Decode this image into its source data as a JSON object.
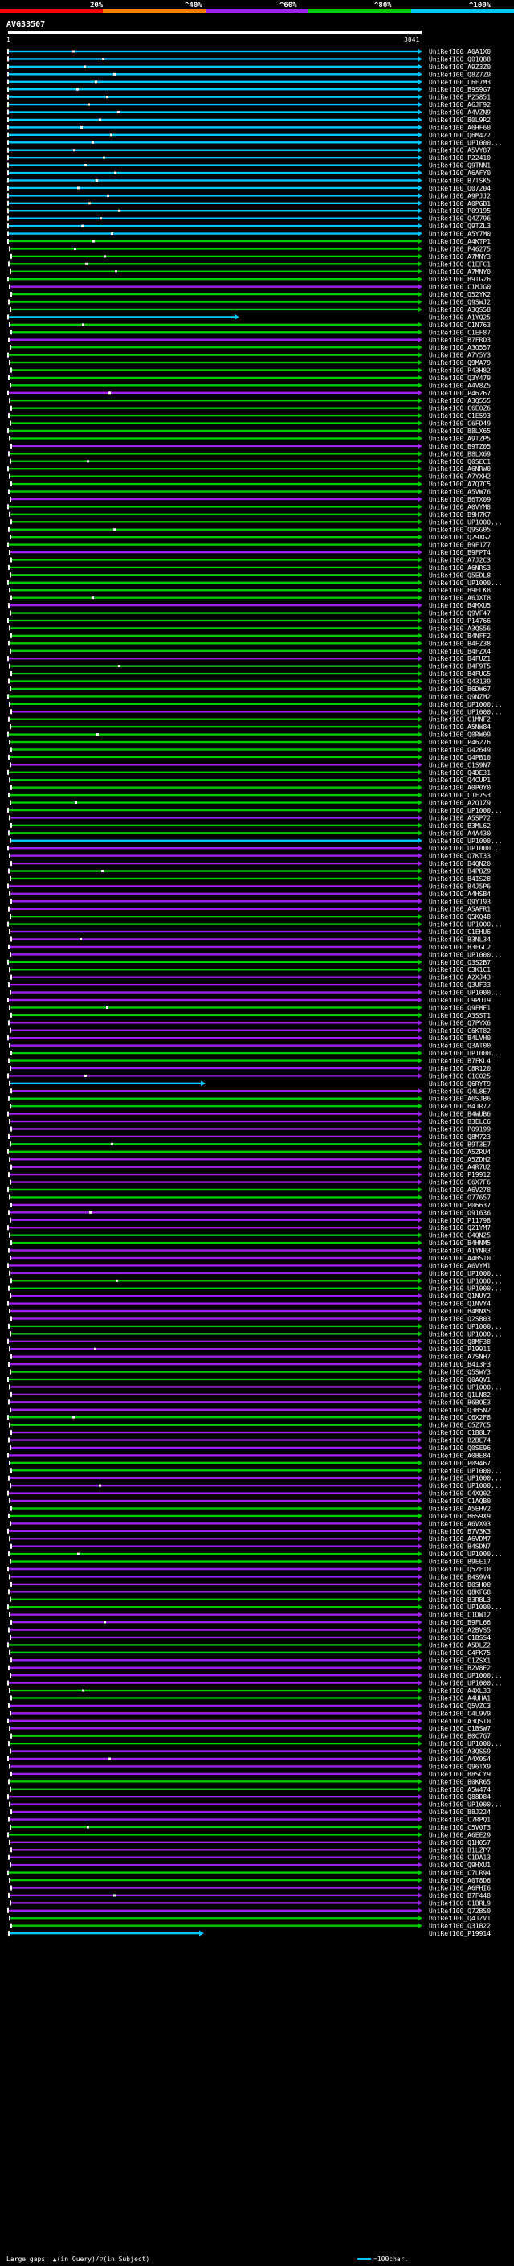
{
  "query_name": "AVG33507",
  "query_start": "1",
  "query_end": "3041",
  "legend": {
    "scale_labels": [
      "20%",
      "^40%",
      "^60%",
      "^80%",
      "^100%"
    ],
    "colors": [
      "#ff0000",
      "#ff7f00",
      "#a020f0",
      "#00cc00",
      "#00c8ff"
    ]
  },
  "footer": {
    "gaps_text": "Large gaps: ▲(in Query)/▽(in Subject)",
    "scale_text": "=100char."
  },
  "chart_data": {
    "type": "alignment",
    "title": "AVG33507",
    "x_range": [
      1,
      3041
    ],
    "color_by_identity": {
      "20": "#ff0000",
      "40": "#ff7f00",
      "60": "#a020f0",
      "80": "#00cc00",
      "100": "#00c8ff"
    },
    "hits": [
      "UniRef100_A0A1X0",
      "UniRef100_Q01Q88",
      "UniRef100_A9Z3Z0",
      "UniRef100_Q8Z7Z9",
      "UniRef100_C6F7M3",
      "UniRef100_B9S9G7",
      "UniRef100_P25851",
      "UniRef100_A6JF92",
      "UniRef100_A4VZN9",
      "UniRef100_B0L9R2",
      "UniRef100_A6HF60",
      "UniRef100_Q6M422",
      "UniRef100_UP1000...",
      "UniRef100_A5VY87",
      "UniRef100_P22410",
      "UniRef100_Q9TNN1",
      "UniRef100_A6AFY0",
      "UniRef100_B7TSK5",
      "UniRef100_Q07204",
      "UniRef100_A9PJJ2",
      "UniRef100_A0PGB1",
      "UniRef100_P09195",
      "UniRef100_Q4Z796",
      "UniRef100_Q9TZL3",
      "UniRef100_A5Y7M0",
      "UniRef100_A4KTP1",
      "UniRef100_P46275",
      "UniRef100_A7MNY3",
      "UniRef100_C1EFC1",
      "UniRef100_A7MNY0",
      "UniRef100_B9IG26",
      "UniRef100_C1MJG0",
      "UniRef100_Q52YK2",
      "UniRef100_Q9SWJ2",
      "UniRef100_A3QS58",
      "UniRef100_A1YQ25",
      "UniRef100_C1N763",
      "UniRef100_C1EF87",
      "UniRef100_B7FRD3",
      "UniRef100_A3Q557",
      "UniRef100_A7Y5Y3",
      "UniRef100_Q9MA79",
      "UniRef100_P43H82",
      "UniRef100_Q3Y479",
      "UniRef100_A4V8Z5",
      "UniRef100_P46267",
      "UniRef100_A3Q555",
      "UniRef100_C6E0Z6",
      "UniRef100_C1E593",
      "UniRef100_C6FD49",
      "UniRef100_B8LX65",
      "UniRef100_A9TZP5",
      "UniRef100_B9TZ05",
      "UniRef100_B8LX69",
      "UniRef100_Q0SEC1",
      "UniRef100_A6NRW0",
      "UniRef100_A7YXH2",
      "UniRef100_A7Q7C5",
      "UniRef100_A5VW76",
      "UniRef100_B6TX09",
      "UniRef100_A0VYM8",
      "UniRef100_B9H7K7",
      "UniRef100_UP1000...",
      "UniRef100_Q9SG05",
      "UniRef100_Q29XG2",
      "UniRef100_B9F1Z7",
      "UniRef100_B9FPT4",
      "UniRef100_A7J2C3",
      "UniRef100_A6NRS3",
      "UniRef100_Q5EDL8",
      "UniRef100_UP1000...",
      "UniRef100_B9ELK8",
      "UniRef100_A6JXT8",
      "UniRef100_B4MXU5",
      "UniRef100_Q9VF47",
      "UniRef100_P14766",
      "UniRef100_A3QS56",
      "UniRef100_B4NFF2",
      "UniRef100_B4FZ38",
      "UniRef100_B4FZX4",
      "UniRef100_B4FUZ1",
      "UniRef100_B4F9T5",
      "UniRef100_B4FUG5",
      "UniRef100_Q43139",
      "UniRef100_B6DW67",
      "UniRef100_Q9NZM2",
      "UniRef100_UP1000...",
      "UniRef100_UP1000...",
      "UniRef100_C1MNF2",
      "UniRef100_A5NW84",
      "UniRef100_Q0RW09",
      "UniRef100_P46276",
      "UniRef100_Q42649",
      "UniRef100_Q4PB10",
      "UniRef100_C1S9N7",
      "UniRef100_Q4DE31",
      "UniRef100_Q4CUP1",
      "UniRef100_A0P0Y0",
      "UniRef100_C1E7S3",
      "UniRef100_A2Q1Z9",
      "UniRef100_UP1000...",
      "UniRef100_A5SP72",
      "UniRef100_B3ML62",
      "UniRef100_A4A430",
      "UniRef100_UP1000...",
      "UniRef100_UP1000...",
      "UniRef100_Q7KT33",
      "UniRef100_B4QN20",
      "UniRef100_B4PBZ9",
      "UniRef100_B4IS28",
      "UniRef100_B4J5P6",
      "UniRef100_A4HSB4",
      "UniRef100_Q9Y193",
      "UniRef100_A5AFR1",
      "UniRef100_Q5KQ48",
      "UniRef100_UP1000...",
      "UniRef100_C1EHU6",
      "UniRef100_B3NL34",
      "UniRef100_B3EGL2",
      "UniRef100_UP1000...",
      "UniRef100_Q3S2B7",
      "UniRef100_C3K1C1",
      "UniRef100_A2XJ43",
      "UniRef100_Q3UF33",
      "UniRef100_UP1000...",
      "UniRef100_C9PU19",
      "UniRef100_Q9FMF1",
      "UniRef100_A3SST1",
      "UniRef100_Q7PYX6",
      "UniRef100_C6KT82",
      "UniRef100_B4LVH0",
      "UniRef100_Q3AT00",
      "UniRef100_UP1000...",
      "UniRef100_B7FKL4",
      "UniRef100_C8R120",
      "UniRef100_C1C025",
      "UniRef100_Q6RYT9",
      "UniRef100_Q4L8E7",
      "UniRef100_A6SJB6",
      "UniRef100_B4JR72",
      "UniRef100_B4WUB6",
      "UniRef100_B3ELC6",
      "UniRef100_P09199",
      "UniRef100_Q8M723",
      "UniRef100_B9T3E7",
      "UniRef100_A5ZRU4",
      "UniRef100_A5ZDH2",
      "UniRef100_A4R7U2",
      "UniRef100_P19912",
      "UniRef100_C6X7F6",
      "UniRef100_A6V278",
      "UniRef100_O77657",
      "UniRef100_P06637",
      "UniRef100_O91636",
      "UniRef100_P11798",
      "UniRef100_Q21YM7",
      "UniRef100_C4QN25",
      "UniRef100_B4HNM5",
      "UniRef100_A1YNR3",
      "UniRef100_A4BS10",
      "UniRef100_A6VYM1",
      "UniRef100_UP1000...",
      "UniRef100_UP1000...",
      "UniRef100_UP1000...",
      "UniRef100_Q1NUY2",
      "UniRef100_Q1NVY4",
      "UniRef100_B4MNX5",
      "UniRef100_Q2SB03",
      "UniRef100_UP1000...",
      "UniRef100_UP1000...",
      "UniRef100_Q8MF38",
      "UniRef100_P19911",
      "UniRef100_A7SNH7",
      "UniRef100_B4I3F3",
      "UniRef100_Q5SWY3",
      "UniRef100_Q0AQV1",
      "UniRef100_UP1000...",
      "UniRef100_Q1LN82",
      "UniRef100_B6BOE3",
      "UniRef100_Q3B5N2",
      "UniRef100_C6X2F8",
      "UniRef100_C5Z7C5",
      "UniRef100_C1B8L7",
      "UniRef100_B2BE74",
      "UniRef100_Q0SE96",
      "UniRef100_A0BE84",
      "UniRef100_P09467",
      "UniRef100_UP1000...",
      "UniRef100_UP1000...",
      "UniRef100_UP1000...",
      "UniRef100_C4XQ02",
      "UniRef100_C1AQB0",
      "UniRef100_A5EHV2",
      "UniRef100_B6S9X9",
      "UniRef100_A6VX93",
      "UniRef100_B7V3K3",
      "UniRef100_A6VDM7",
      "UniRef100_B4SDN7",
      "UniRef100_UP1000...",
      "UniRef100_B9EE17",
      "UniRef100_Q5ZF10",
      "UniRef100_B4S9V4",
      "UniRef100_B0SH00",
      "UniRef100_Q8KFG8",
      "UniRef100_B3RBL3",
      "UniRef100_UP1000...",
      "UniRef100_C1DW12",
      "UniRef100_B9FL66",
      "UniRef100_A2BVS5",
      "UniRef100_C1BSS4",
      "UniRef100_A5DLZ2",
      "UniRef100_C4FK75",
      "UniRef100_C1ZSX1",
      "UniRef100_B2V8E2",
      "UniRef100_UP1000...",
      "UniRef100_UP1000...",
      "UniRef100_A4XL33",
      "UniRef100_A4UHA1",
      "UniRef100_Q5VZC3",
      "UniRef100_C4L9V9",
      "UniRef100_A3QST0",
      "UniRef100_C1BSW7",
      "UniRef100_B0C7G7",
      "UniRef100_UP1000...",
      "UniRef100_A3QSS9",
      "UniRef100_A4X0S4",
      "UniRef100_Q96TX9",
      "UniRef100_B8SCY9",
      "UniRef100_B0KR65",
      "UniRef100_A5W474",
      "UniRef100_Q88D84",
      "UniRef100_UP1000...",
      "UniRef100_B8J224",
      "UniRef100_C7RPQ1",
      "UniRef100_C5V0T3",
      "UniRef100_A6EE29",
      "UniRef100_Q1H057",
      "UniRef100_B1LZP7",
      "UniRef100_C1DA13",
      "UniRef100_Q9HXU1",
      "UniRef100_C7LR94",
      "UniRef100_A0T8D6",
      "UniRef100_A6FHI6",
      "UniRef100_B7F448",
      "UniRef100_C1BRL9",
      "UniRef100_Q72BS0",
      "UniRef100_Q4JZV1",
      "UniRef100_Q31B22",
      "UniRef100_P19914"
    ]
  }
}
